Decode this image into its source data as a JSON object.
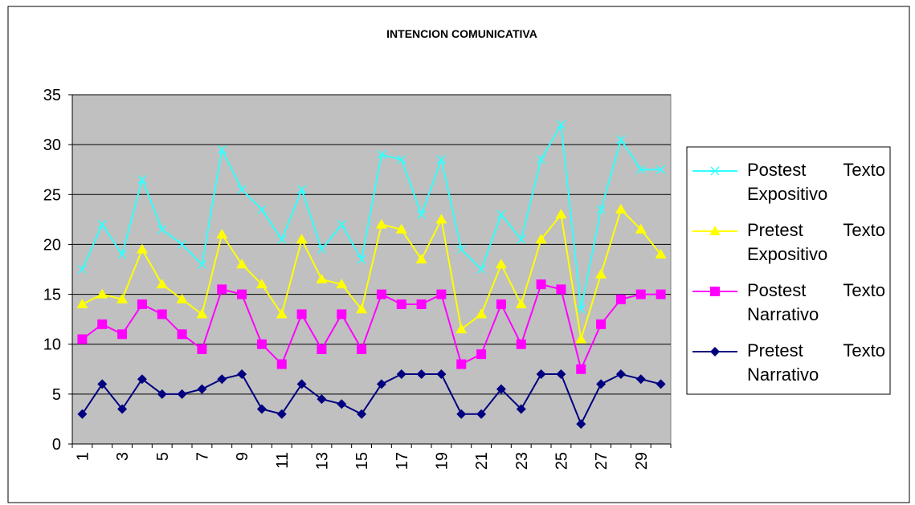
{
  "chart_data": {
    "type": "line",
    "title": "INTENCION COMUNICATIVA",
    "categories": [
      "1",
      null,
      "3",
      null,
      "5",
      null,
      "7",
      null,
      "9",
      null,
      "11",
      null,
      "13",
      null,
      "15",
      null,
      "17",
      null,
      "19",
      null,
      "21",
      null,
      "23",
      null,
      "25",
      null,
      "27",
      null,
      "29",
      null
    ],
    "series": [
      {
        "name": "Postest Texto Expositivo",
        "color": "#33ffff",
        "marker": "x",
        "values": [
          17.5,
          22,
          19,
          26.5,
          21.5,
          20,
          18,
          29.5,
          25.5,
          23.5,
          20.5,
          25.5,
          19.5,
          22,
          18.5,
          29,
          28.5,
          23,
          28.5,
          19.5,
          17.5,
          23,
          20.5,
          28.5,
          32,
          13.5,
          23.5,
          30.5,
          27.5,
          27.5
        ]
      },
      {
        "name": "Pretest Texto Expositivo",
        "color": "#ffff00",
        "marker": "triangle",
        "values": [
          14,
          15,
          14.5,
          19.5,
          16,
          14.5,
          13,
          21,
          18,
          16,
          13,
          20.5,
          16.5,
          16,
          13.5,
          22,
          21.5,
          18.5,
          22.5,
          11.5,
          13,
          18,
          14,
          20.5,
          23,
          10.5,
          17,
          23.5,
          21.5,
          19
        ]
      },
      {
        "name": "Postest Texto Narrativo",
        "color": "#ff00ff",
        "marker": "square",
        "values": [
          10.5,
          12,
          11,
          14,
          13,
          11,
          9.5,
          15.5,
          15,
          10,
          8,
          13,
          9.5,
          13,
          9.5,
          15,
          14,
          14,
          15,
          8,
          9,
          14,
          10,
          16,
          15.5,
          7.5,
          12,
          14.5,
          15,
          15
        ]
      },
      {
        "name": "Pretest Texto Narrativo",
        "color": "#000080",
        "marker": "diamond",
        "values": [
          3,
          6,
          3.5,
          6.5,
          5,
          5,
          5.5,
          6.5,
          7,
          3.5,
          3,
          6,
          4.5,
          4,
          3,
          6,
          7,
          7,
          7,
          3,
          3,
          5.5,
          3.5,
          7,
          7,
          2,
          6,
          7,
          6.5,
          6
        ]
      }
    ],
    "ylim": [
      0,
      35
    ],
    "yticks": [
      0,
      5,
      10,
      15,
      20,
      25,
      30,
      35
    ],
    "grid": true,
    "legend": "right"
  }
}
